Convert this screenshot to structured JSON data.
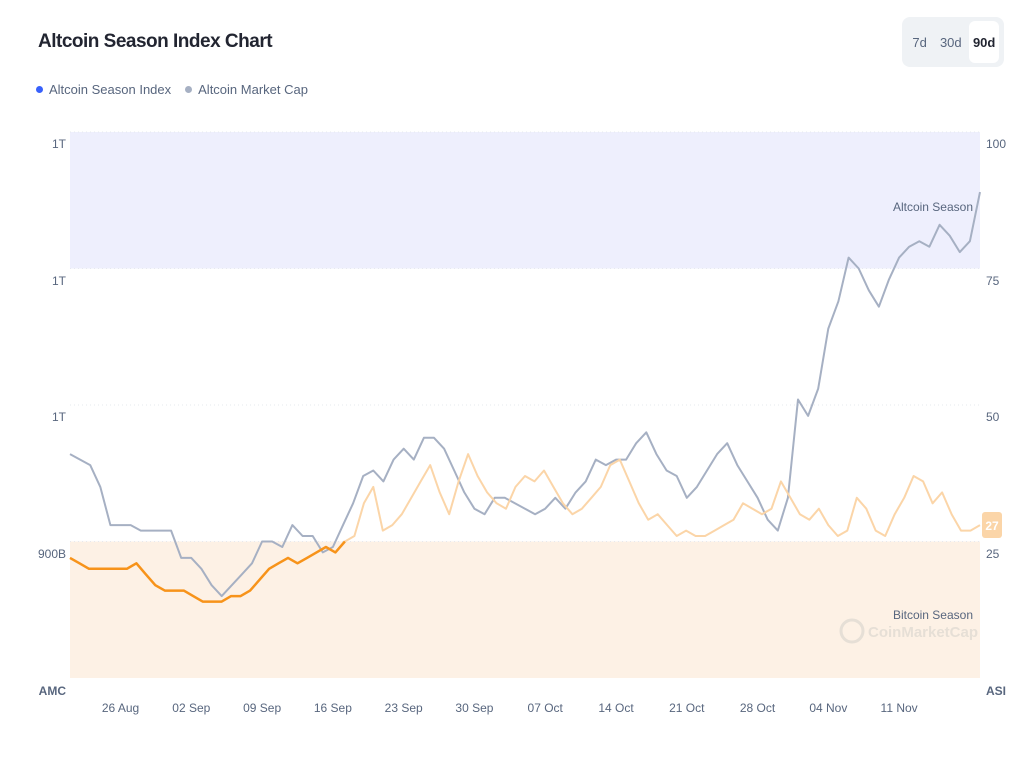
{
  "title": "Altcoin Season Index Chart",
  "range_buttons": [
    {
      "label": "7d",
      "active": false
    },
    {
      "label": "30d",
      "active": false
    },
    {
      "label": "90d",
      "active": true
    }
  ],
  "colors": {
    "index": "#f7931a",
    "index_light": "#fbd5a8",
    "market_cap": "#a6b0c3",
    "altcoin_zone": "#eeeffd",
    "bitcoin_zone": "#fdf1e5",
    "legend_index_dot": "#3861fb"
  },
  "chart_data": {
    "type": "line",
    "title": "Altcoin Season Index Chart",
    "legend": [
      "Altcoin Season Index",
      "Altcoin Market Cap"
    ],
    "legend_position": "top-left",
    "x_ticks": [
      "26 Aug",
      "02 Sep",
      "09 Sep",
      "16 Sep",
      "23 Sep",
      "30 Sep",
      "07 Oct",
      "14 Oct",
      "21 Oct",
      "28 Oct",
      "04 Nov",
      "11 Nov"
    ],
    "left_axis_label": "AMC",
    "left_ticks": [
      "1T",
      "1T",
      "1T",
      "900B"
    ],
    "right_axis_label": "ASI",
    "right_ticks": [
      100,
      75,
      50,
      25
    ],
    "right_ylim": [
      0,
      100
    ],
    "zones": {
      "altcoin_season_label": "Altcoin Season",
      "altcoin_season_range": [
        75,
        100
      ],
      "bitcoin_season_label": "Bitcoin Season",
      "bitcoin_season_range": [
        0,
        25
      ]
    },
    "watermark": "CoinMarketCap",
    "current_value_label": "27",
    "x_start": "2024-08-21",
    "x_end": "2024-11-19",
    "series": [
      {
        "name": "Altcoin Season Index",
        "axis": "right",
        "values": [
          22,
          21,
          20,
          20,
          20,
          20,
          20,
          21,
          19,
          17,
          16,
          16,
          16,
          15,
          14,
          14,
          14,
          15,
          15,
          16,
          18,
          20,
          21,
          22,
          21,
          22,
          23,
          24,
          23,
          25,
          26,
          32,
          35,
          27,
          28,
          30,
          33,
          36,
          39,
          34,
          30,
          36,
          41,
          37,
          34,
          32,
          31,
          35,
          37,
          36,
          38,
          35,
          32,
          30,
          31,
          33,
          35,
          39,
          40,
          36,
          32,
          29,
          30,
          28,
          26,
          27,
          26,
          26,
          27,
          28,
          29,
          32,
          31,
          30,
          31,
          36,
          33,
          30,
          29,
          31,
          28,
          26,
          27,
          33,
          31,
          27,
          26,
          30,
          33,
          37,
          36,
          32,
          34,
          30,
          27,
          27,
          28
        ]
      },
      {
        "name": "Altcoin Market Cap",
        "axis": "left",
        "scale": "relative",
        "values": [
          41,
          40,
          39,
          35,
          28,
          28,
          28,
          27,
          27,
          27,
          27,
          22,
          22,
          20,
          17,
          15,
          17,
          19,
          21,
          25,
          25,
          24,
          28,
          26,
          26,
          23,
          24,
          28,
          32,
          37,
          38,
          36,
          40,
          42,
          40,
          44,
          44,
          42,
          38,
          34,
          31,
          30,
          33,
          33,
          32,
          31,
          30,
          31,
          33,
          31,
          34,
          36,
          40,
          39,
          40,
          40,
          43,
          45,
          41,
          38,
          37,
          33,
          35,
          38,
          41,
          43,
          39,
          36,
          33,
          29,
          27,
          33,
          51,
          48,
          53,
          64,
          69,
          77,
          75,
          71,
          68,
          73,
          77,
          79,
          80,
          79,
          83,
          81,
          78,
          80,
          89
        ]
      }
    ]
  }
}
